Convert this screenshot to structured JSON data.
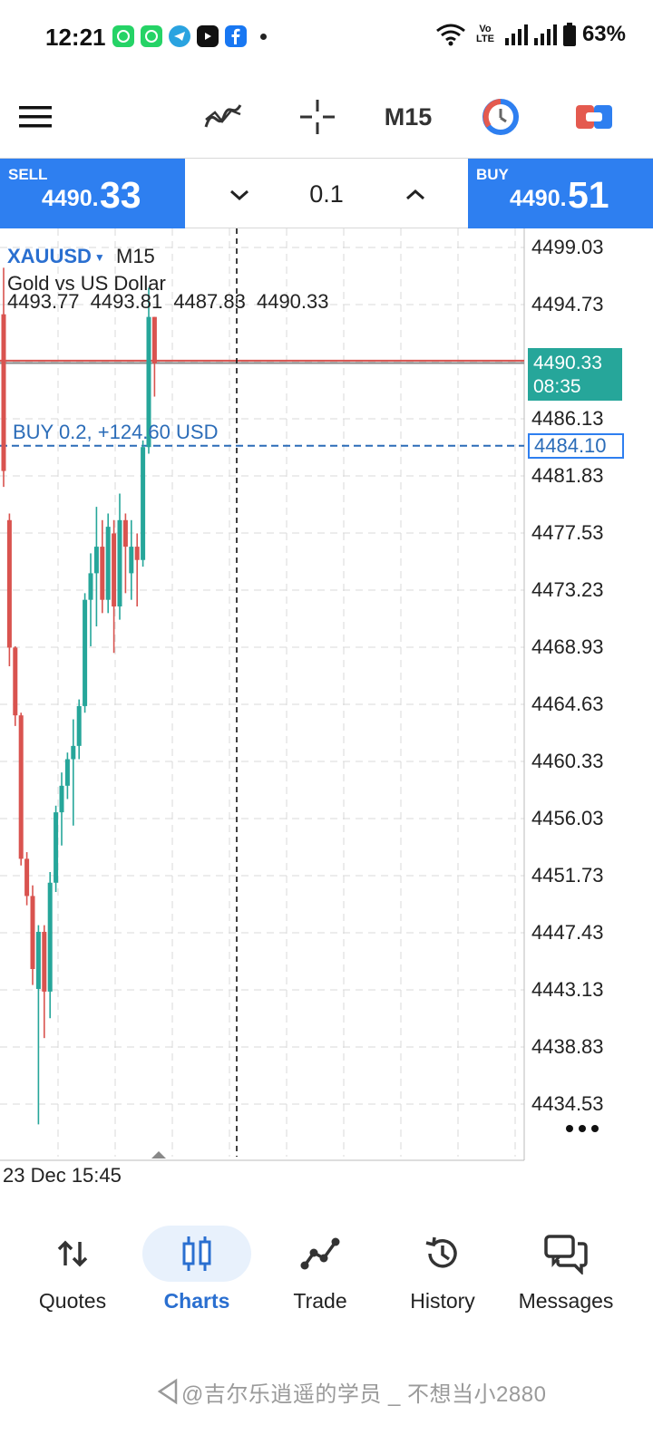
{
  "status_bar": {
    "time": "12:21",
    "battery": "63%",
    "network": "Vo LTE"
  },
  "toolbar": {
    "timeframe": "M15"
  },
  "trade": {
    "sell_label": "SELL",
    "sell_price_small": "4490.",
    "sell_price_large": "33",
    "buy_label": "BUY",
    "buy_price_small": "4490.",
    "buy_price_large": "51",
    "volume": "0.1"
  },
  "chart": {
    "symbol": "XAUUSD",
    "timeframe": "M15",
    "description": "Gold vs US Dollar",
    "ohlc": [
      "4493.77",
      "4493.81",
      "4487.83",
      "4490.33"
    ],
    "position_label": "BUY 0.2,   +124.60 USD",
    "current_price": "4490.33",
    "countdown": "08:35",
    "position_price": "4484.10",
    "time_label": "23 Dec 15:45",
    "y_ticks": [
      "4499.03",
      "4494.73",
      "4486.13",
      "4481.83",
      "4477.53",
      "4473.23",
      "4468.93",
      "4464.63",
      "4460.33",
      "4456.03",
      "4451.73",
      "4447.43",
      "4443.13",
      "4438.83",
      "4434.53"
    ],
    "colors": {
      "bull": "#26a69a",
      "bear": "#d9534f",
      "accent": "#2e7ff0"
    }
  },
  "chart_data": {
    "type": "candlestick",
    "ylim": [
      4432.0,
      4502.0
    ],
    "candles": [
      {
        "o": 4494.0,
        "h": 4497.5,
        "l": 4481.0,
        "c": 4482.2
      },
      {
        "o": 4478.5,
        "h": 4479.0,
        "l": 4467.5,
        "c": 4468.9
      },
      {
        "o": 4468.9,
        "h": 4469.0,
        "l": 4463.0,
        "c": 4463.8
      },
      {
        "o": 4463.8,
        "h": 4464.0,
        "l": 4452.5,
        "c": 4453.0
      },
      {
        "o": 4453.0,
        "h": 4453.5,
        "l": 4449.5,
        "c": 4450.2
      },
      {
        "o": 4450.2,
        "h": 4451.0,
        "l": 4443.5,
        "c": 4444.7
      },
      {
        "o": 4443.2,
        "h": 4448.0,
        "l": 4433.0,
        "c": 4447.5
      },
      {
        "o": 4447.5,
        "h": 4448.0,
        "l": 4439.5,
        "c": 4443.0
      },
      {
        "o": 4443.0,
        "h": 4452.0,
        "l": 4441.0,
        "c": 4451.2
      },
      {
        "o": 4451.2,
        "h": 4457.0,
        "l": 4450.5,
        "c": 4456.5
      },
      {
        "o": 4456.5,
        "h": 4459.5,
        "l": 4454.0,
        "c": 4458.5
      },
      {
        "o": 4458.5,
        "h": 4461.0,
        "l": 4457.5,
        "c": 4460.5
      },
      {
        "o": 4460.5,
        "h": 4463.5,
        "l": 4455.5,
        "c": 4461.5
      },
      {
        "o": 4461.5,
        "h": 4465.0,
        "l": 4460.5,
        "c": 4464.5
      },
      {
        "o": 4464.5,
        "h": 4473.0,
        "l": 4464.0,
        "c": 4472.5
      },
      {
        "o": 4472.5,
        "h": 4476.0,
        "l": 4469.0,
        "c": 4474.5
      },
      {
        "o": 4474.5,
        "h": 4479.5,
        "l": 4470.5,
        "c": 4476.5
      },
      {
        "o": 4476.5,
        "h": 4478.5,
        "l": 4471.5,
        "c": 4472.5
      },
      {
        "o": 4472.5,
        "h": 4479.0,
        "l": 4471.5,
        "c": 4478.0
      },
      {
        "o": 4477.5,
        "h": 4478.5,
        "l": 4468.5,
        "c": 4472.0
      },
      {
        "o": 4472.0,
        "h": 4480.5,
        "l": 4471.0,
        "c": 4478.5
      },
      {
        "o": 4478.5,
        "h": 4479.0,
        "l": 4473.0,
        "c": 4476.5
      },
      {
        "o": 4474.5,
        "h": 4478.5,
        "l": 4472.5,
        "c": 4476.5
      },
      {
        "o": 4476.5,
        "h": 4477.5,
        "l": 4472.0,
        "c": 4475.5
      },
      {
        "o": 4475.5,
        "h": 4484.5,
        "l": 4475.0,
        "c": 4484.0
      },
      {
        "o": 4484.0,
        "h": 4496.0,
        "l": 4483.5,
        "c": 4493.8
      },
      {
        "o": 4493.8,
        "h": 4493.8,
        "l": 4487.8,
        "c": 4490.3
      }
    ]
  },
  "nav": {
    "quotes": "Quotes",
    "charts": "Charts",
    "trade": "Trade",
    "history": "History",
    "messages": "Messages"
  },
  "watermark": "@吉尔乐逍遥的学员 _ 不想当小2880"
}
